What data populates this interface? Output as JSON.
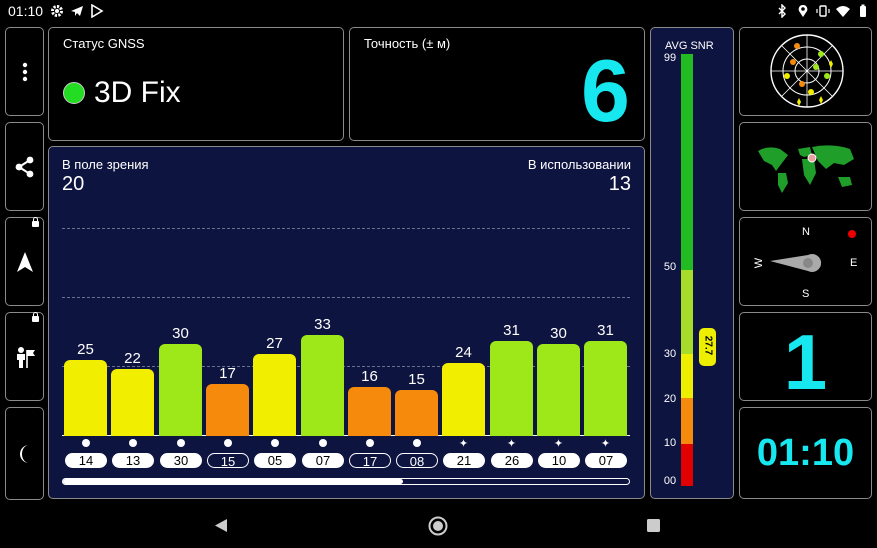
{
  "status_bar": {
    "time": "01:10"
  },
  "gnss": {
    "label": "Статус GNSS",
    "status": "3D Fix",
    "indicator_color": "#22dd22"
  },
  "accuracy": {
    "label": "Точность (± м)",
    "value": "6",
    "value_color": "#17e8f0"
  },
  "sky": {
    "in_view_label": "В поле зрения",
    "in_view": "20",
    "in_use_label": "В использовании",
    "in_use": "13",
    "satellites": [
      {
        "prn": "14",
        "snr": 25,
        "color": "#f2ee00",
        "used": true,
        "mark": "dot"
      },
      {
        "prn": "13",
        "snr": 22,
        "color": "#f2ee00",
        "used": true,
        "mark": "dot"
      },
      {
        "prn": "30",
        "snr": 30,
        "color": "#9ee81a",
        "used": true,
        "mark": "dot"
      },
      {
        "prn": "15",
        "snr": 17,
        "color": "#f58a0c",
        "used": false,
        "mark": "dot"
      },
      {
        "prn": "05",
        "snr": 27,
        "color": "#f2ee00",
        "used": true,
        "mark": "dot"
      },
      {
        "prn": "07",
        "snr": 33,
        "color": "#9ee81a",
        "used": true,
        "mark": "dot"
      },
      {
        "prn": "17",
        "snr": 16,
        "color": "#f58a0c",
        "used": false,
        "mark": "dot"
      },
      {
        "prn": "08",
        "snr": 15,
        "color": "#f58a0c",
        "used": false,
        "mark": "dot"
      },
      {
        "prn": "21",
        "snr": 24,
        "color": "#f2ee00",
        "used": true,
        "mark": "star"
      },
      {
        "prn": "26",
        "snr": 31,
        "color": "#9ee81a",
        "used": true,
        "mark": "star"
      },
      {
        "prn": "10",
        "snr": 30,
        "color": "#9ee81a",
        "used": true,
        "mark": "star"
      },
      {
        "prn": "07",
        "snr": 31,
        "color": "#9ee81a",
        "used": true,
        "mark": "star"
      }
    ],
    "scroll_fraction": 0.6
  },
  "snr": {
    "label": "AVG SNR",
    "average": "27.7",
    "ticks": [
      "99",
      "50",
      "30",
      "20",
      "10",
      "00"
    ],
    "colors": {
      "green": "#22bb22",
      "lime": "#a8dc2a",
      "yellow": "#eeee00",
      "orange": "#f58a0c",
      "red": "#e00000"
    }
  },
  "compass": {
    "n": "N",
    "e": "E",
    "s": "S",
    "w": "W"
  },
  "sats_count": {
    "value": "1",
    "color": "#17e8f0"
  },
  "clock": {
    "value": "01:10",
    "color": "#17e8f0"
  }
}
